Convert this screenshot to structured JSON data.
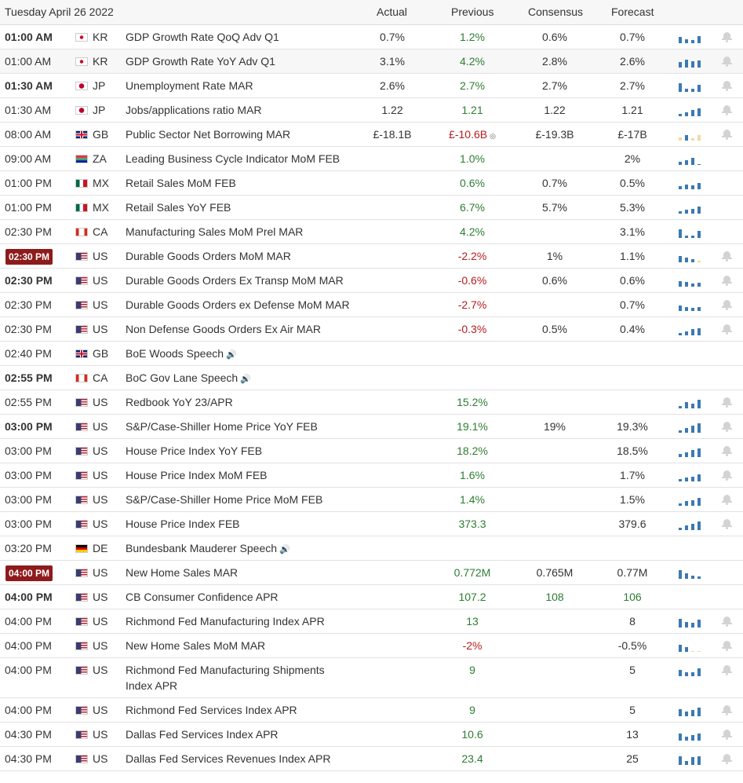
{
  "header": {
    "date": "Tuesday April 26 2022",
    "columns": {
      "actual": "Actual",
      "previous": "Previous",
      "consensus": "Consensus",
      "forecast": "Forecast"
    }
  },
  "rows": [
    {
      "time": "01:00 AM",
      "country": "KR",
      "event": "GDP Growth Rate QoQ Adv Q1",
      "actual": "0.7%",
      "previous": "1.2%",
      "consensus": "0.6%",
      "forecast": "0.7%"
    },
    {
      "time": "01:00 AM",
      "country": "KR",
      "event": "GDP Growth Rate YoY Adv Q1",
      "actual": "3.1%",
      "previous": "4.2%",
      "consensus": "2.8%",
      "forecast": "2.6%"
    },
    {
      "time": "01:30 AM",
      "country": "JP",
      "event": "Unemployment Rate MAR",
      "actual": "2.6%",
      "previous": "2.7%",
      "consensus": "2.7%",
      "forecast": "2.7%"
    },
    {
      "time": "01:30 AM",
      "country": "JP",
      "event": "Jobs/applications ratio MAR",
      "actual": "1.22",
      "previous": "1.21",
      "consensus": "1.22",
      "forecast": "1.21"
    },
    {
      "time": "08:00 AM",
      "country": "GB",
      "event": "Public Sector Net Borrowing MAR",
      "actual": "£-18.1B",
      "previous": "£-10.6B",
      "consensus": "£-19.3B",
      "forecast": "£-17B"
    },
    {
      "time": "09:00 AM",
      "country": "ZA",
      "event": "Leading Business Cycle Indicator MoM FEB",
      "actual": "",
      "previous": "1.0%",
      "consensus": "",
      "forecast": "2%"
    },
    {
      "time": "01:00 PM",
      "country": "MX",
      "event": "Retail Sales MoM FEB",
      "actual": "",
      "previous": "0.6%",
      "consensus": "0.7%",
      "forecast": "0.5%"
    },
    {
      "time": "01:00 PM",
      "country": "MX",
      "event": "Retail Sales YoY FEB",
      "actual": "",
      "previous": "6.7%",
      "consensus": "5.7%",
      "forecast": "5.3%"
    },
    {
      "time": "02:30 PM",
      "country": "CA",
      "event": "Manufacturing Sales MoM Prel MAR",
      "actual": "",
      "previous": "4.2%",
      "consensus": "",
      "forecast": "3.1%"
    },
    {
      "time": "02:30 PM",
      "country": "US",
      "event": "Durable Goods Orders MoM MAR",
      "actual": "",
      "previous": "-2.2%",
      "consensus": "1%",
      "forecast": "1.1%"
    },
    {
      "time": "02:30 PM",
      "country": "US",
      "event": "Durable Goods Orders Ex Transp MoM MAR",
      "actual": "",
      "previous": "-0.6%",
      "consensus": "0.6%",
      "forecast": "0.6%"
    },
    {
      "time": "02:30 PM",
      "country": "US",
      "event": "Durable Goods Orders ex Defense MoM MAR",
      "actual": "",
      "previous": "-2.7%",
      "consensus": "",
      "forecast": "0.7%"
    },
    {
      "time": "02:30 PM",
      "country": "US",
      "event": "Non Defense Goods Orders Ex Air MAR",
      "actual": "",
      "previous": "-0.3%",
      "consensus": "0.5%",
      "forecast": "0.4%"
    },
    {
      "time": "02:40 PM",
      "country": "GB",
      "event": "BoE Woods Speech",
      "actual": "",
      "previous": "",
      "consensus": "",
      "forecast": ""
    },
    {
      "time": "02:55 PM",
      "country": "CA",
      "event": "BoC Gov Lane Speech",
      "actual": "",
      "previous": "",
      "consensus": "",
      "forecast": ""
    },
    {
      "time": "02:55 PM",
      "country": "US",
      "event": "Redbook YoY 23/APR",
      "actual": "",
      "previous": "15.2%",
      "consensus": "",
      "forecast": ""
    },
    {
      "time": "03:00 PM",
      "country": "US",
      "event": "S&P/Case-Shiller Home Price YoY FEB",
      "actual": "",
      "previous": "19.1%",
      "consensus": "19%",
      "forecast": "19.3%"
    },
    {
      "time": "03:00 PM",
      "country": "US",
      "event": "House Price Index YoY FEB",
      "actual": "",
      "previous": "18.2%",
      "consensus": "",
      "forecast": "18.5%"
    },
    {
      "time": "03:00 PM",
      "country": "US",
      "event": "House Price Index MoM FEB",
      "actual": "",
      "previous": "1.6%",
      "consensus": "",
      "forecast": "1.7%"
    },
    {
      "time": "03:00 PM",
      "country": "US",
      "event": "S&P/Case-Shiller Home Price MoM FEB",
      "actual": "",
      "previous": "1.4%",
      "consensus": "",
      "forecast": "1.5%"
    },
    {
      "time": "03:00 PM",
      "country": "US",
      "event": "House Price Index FEB",
      "actual": "",
      "previous": "373.3",
      "consensus": "",
      "forecast": "379.6"
    },
    {
      "time": "03:20 PM",
      "country": "DE",
      "event": "Bundesbank Mauderer Speech",
      "actual": "",
      "previous": "",
      "consensus": "",
      "forecast": ""
    },
    {
      "time": "04:00 PM",
      "country": "US",
      "event": "New Home Sales MAR",
      "actual": "",
      "previous": "0.772M",
      "consensus": "0.765M",
      "forecast": "0.77M"
    },
    {
      "time": "04:00 PM",
      "country": "US",
      "event": "CB Consumer Confidence APR",
      "actual": "",
      "previous": "107.2",
      "consensus": "108",
      "forecast": "106"
    },
    {
      "time": "04:00 PM",
      "country": "US",
      "event": "Richmond Fed Manufacturing Index APR",
      "actual": "",
      "previous": "13",
      "consensus": "",
      "forecast": "8"
    },
    {
      "time": "04:00 PM",
      "country": "US",
      "event": "New Home Sales MoM MAR",
      "actual": "",
      "previous": "-2%",
      "consensus": "",
      "forecast": "-0.5%"
    },
    {
      "time": "04:00 PM",
      "country": "US",
      "event": "Richmond Fed Manufacturing Shipments Index APR",
      "actual": "",
      "previous": "9",
      "consensus": "",
      "forecast": "5"
    },
    {
      "time": "04:00 PM",
      "country": "US",
      "event": "Richmond Fed Services Index APR",
      "actual": "",
      "previous": "9",
      "consensus": "",
      "forecast": "5"
    },
    {
      "time": "04:30 PM",
      "country": "US",
      "event": "Dallas Fed Services Index APR",
      "actual": "",
      "previous": "10.6",
      "consensus": "",
      "forecast": "13"
    },
    {
      "time": "04:30 PM",
      "country": "US",
      "event": "Dallas Fed Services Revenues Index APR",
      "actual": "",
      "previous": "23.4",
      "consensus": "",
      "forecast": "25"
    }
  ],
  "colors": {
    "positive": "#2e7d32",
    "negative": "#b71c1c",
    "badge": "#8e1b1b",
    "spark": "#3b79b3"
  }
}
